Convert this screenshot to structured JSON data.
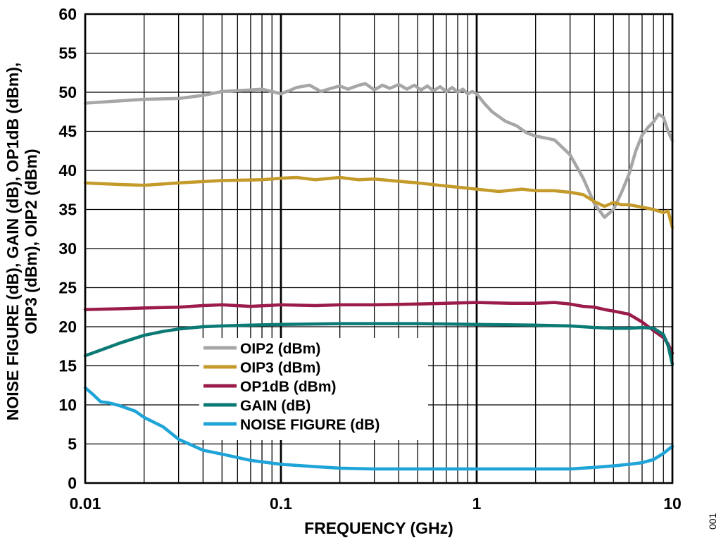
{
  "chart_data": {
    "type": "line",
    "xscale": "log",
    "xlim": [
      0.01,
      10
    ],
    "ylim": [
      0,
      60
    ],
    "xticks": [
      0.01,
      0.1,
      1,
      10
    ],
    "xtick_labels": [
      "0.01",
      "0.1",
      "1",
      "10"
    ],
    "yticks": [
      0,
      5,
      10,
      15,
      20,
      25,
      30,
      35,
      40,
      45,
      50,
      55,
      60
    ],
    "xlabel": "FREQUENCY (GHz)",
    "ylabel_line1": "NOISE FIGURE (dB), GAIN (dB), OP1dB (dBm),",
    "ylabel_line2": "OIP3 (dBm), OIP2 (dBm)",
    "grid": true,
    "legend_position": "center-left",
    "figure_id": "001",
    "series": [
      {
        "name": "OIP2 (dBm)",
        "color": "#a6a6a6",
        "x": [
          0.01,
          0.015,
          0.02,
          0.03,
          0.04,
          0.05,
          0.06,
          0.07,
          0.08,
          0.09,
          0.1,
          0.11,
          0.12,
          0.14,
          0.16,
          0.18,
          0.2,
          0.22,
          0.25,
          0.27,
          0.3,
          0.33,
          0.36,
          0.4,
          0.44,
          0.48,
          0.52,
          0.56,
          0.6,
          0.65,
          0.7,
          0.75,
          0.8,
          0.85,
          0.9,
          0.95,
          1.0,
          1.1,
          1.2,
          1.4,
          1.6,
          1.8,
          2.0,
          2.5,
          3.0,
          3.5,
          4.0,
          4.5,
          5.0,
          5.5,
          6.0,
          6.5,
          7.0,
          7.5,
          8.0,
          8.5,
          9.0,
          9.5,
          10.0
        ],
        "y": [
          48.6,
          48.9,
          49.1,
          49.2,
          49.6,
          50.1,
          50.2,
          50.3,
          50.4,
          50.1,
          49.8,
          50.2,
          50.6,
          50.9,
          50.1,
          50.5,
          50.8,
          50.4,
          50.9,
          51.1,
          50.3,
          50.9,
          50.5,
          51.0,
          50.4,
          50.9,
          50.3,
          50.8,
          50.2,
          50.7,
          50.1,
          50.6,
          50.0,
          50.4,
          49.8,
          50.1,
          49.8,
          48.5,
          47.5,
          46.3,
          45.7,
          44.8,
          44.4,
          43.9,
          42.0,
          39.0,
          35.7,
          34.0,
          35.0,
          37.2,
          39.5,
          42.5,
          44.5,
          45.5,
          46.2,
          47.2,
          46.8,
          45.0,
          43.8
        ]
      },
      {
        "name": "OIP3 (dBm)",
        "color": "#c49a2a",
        "x": [
          0.01,
          0.015,
          0.02,
          0.03,
          0.05,
          0.08,
          0.1,
          0.12,
          0.15,
          0.2,
          0.25,
          0.3,
          0.4,
          0.5,
          0.7,
          1.0,
          1.3,
          1.7,
          2.0,
          2.5,
          3.0,
          3.5,
          4.0,
          4.5,
          5.0,
          5.5,
          6.0,
          7.0,
          8.0,
          9.0,
          9.5,
          10.0
        ],
        "y": [
          38.4,
          38.2,
          38.1,
          38.4,
          38.7,
          38.8,
          39.0,
          39.1,
          38.8,
          39.1,
          38.8,
          38.9,
          38.6,
          38.4,
          38.0,
          37.6,
          37.3,
          37.6,
          37.4,
          37.4,
          37.2,
          36.9,
          36.0,
          35.4,
          35.9,
          35.6,
          35.6,
          35.3,
          35.0,
          34.6,
          34.8,
          32.7
        ]
      },
      {
        "name": "OP1dB (dBm)",
        "color": "#9b1b4a",
        "x": [
          0.01,
          0.015,
          0.02,
          0.03,
          0.04,
          0.05,
          0.07,
          0.1,
          0.15,
          0.2,
          0.3,
          0.5,
          0.7,
          1.0,
          1.5,
          2.0,
          2.5,
          3.0,
          3.5,
          4.0,
          4.5,
          5.0,
          6.0,
          7.0,
          8.0,
          9.0,
          9.5,
          10.0
        ],
        "y": [
          22.2,
          22.3,
          22.4,
          22.5,
          22.7,
          22.8,
          22.6,
          22.8,
          22.7,
          22.8,
          22.8,
          22.9,
          23.0,
          23.1,
          23.0,
          23.0,
          23.1,
          22.9,
          22.6,
          22.5,
          22.2,
          22.0,
          21.6,
          20.6,
          19.5,
          18.6,
          17.8,
          16.6
        ]
      },
      {
        "name": "GAIN (dB)",
        "color": "#0b7a75",
        "x": [
          0.01,
          0.012,
          0.015,
          0.02,
          0.025,
          0.03,
          0.04,
          0.05,
          0.07,
          0.1,
          0.2,
          0.3,
          0.5,
          1.0,
          2.0,
          3.0,
          4.0,
          5.0,
          6.0,
          7.0,
          8.0,
          9.0,
          9.5,
          10.0
        ],
        "y": [
          16.3,
          17.0,
          17.9,
          18.9,
          19.4,
          19.7,
          20.0,
          20.1,
          20.2,
          20.3,
          20.4,
          20.4,
          20.4,
          20.3,
          20.2,
          20.1,
          19.9,
          19.8,
          19.8,
          19.9,
          19.8,
          19.0,
          17.6,
          15.2
        ]
      },
      {
        "name": "NOISE FIGURE (dB)",
        "color": "#1fa4d8",
        "x": [
          0.01,
          0.011,
          0.012,
          0.013,
          0.015,
          0.018,
          0.02,
          0.025,
          0.03,
          0.04,
          0.05,
          0.07,
          0.1,
          0.15,
          0.2,
          0.3,
          0.5,
          1.0,
          2.0,
          3.0,
          4.0,
          5.0,
          6.0,
          7.0,
          8.0,
          9.0,
          10.0
        ],
        "y": [
          12.2,
          11.3,
          10.4,
          10.3,
          9.9,
          9.2,
          8.4,
          7.2,
          5.6,
          4.2,
          3.7,
          2.9,
          2.4,
          2.1,
          1.9,
          1.8,
          1.8,
          1.8,
          1.8,
          1.8,
          2.0,
          2.2,
          2.4,
          2.6,
          3.0,
          3.8,
          4.7
        ]
      }
    ]
  }
}
